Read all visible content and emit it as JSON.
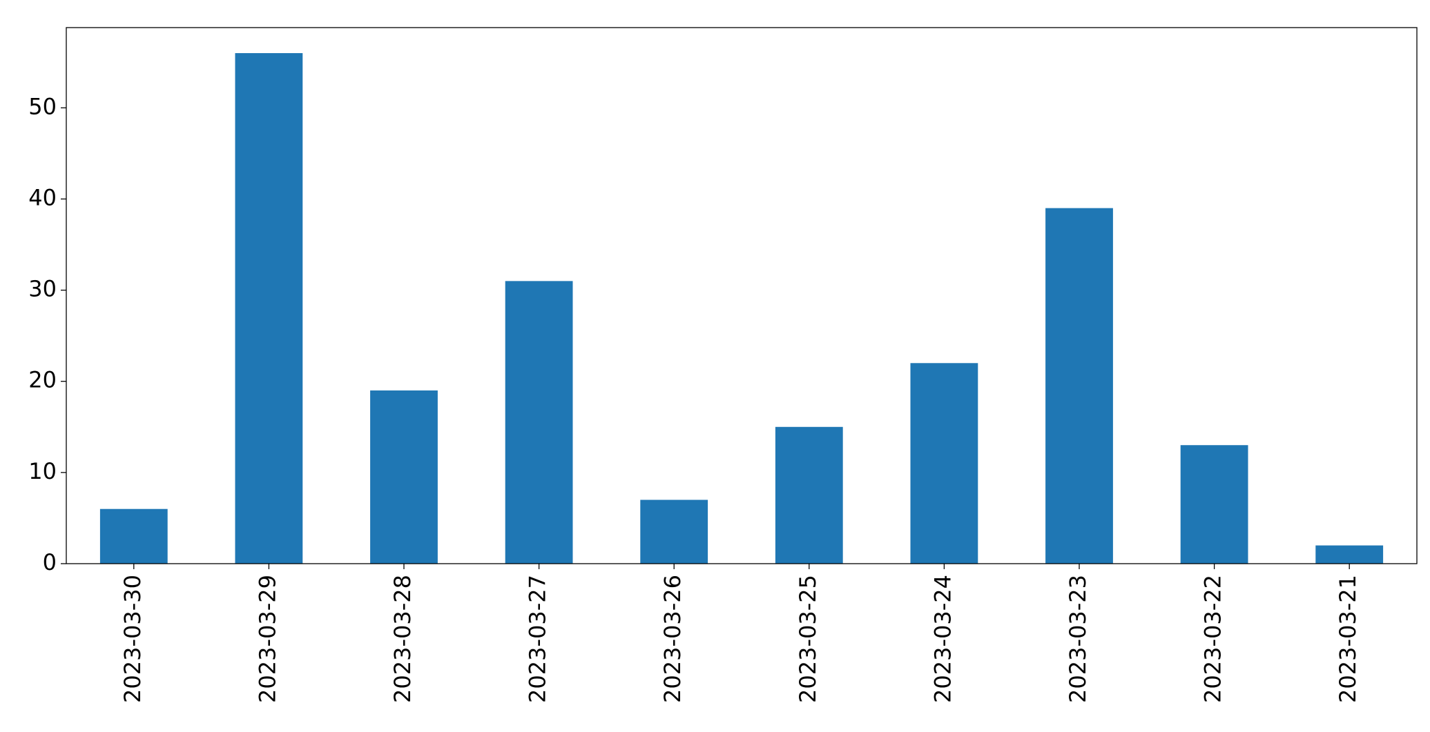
{
  "chart_data": {
    "type": "bar",
    "categories": [
      "2023-03-30",
      "2023-03-29",
      "2023-03-28",
      "2023-03-27",
      "2023-03-26",
      "2023-03-25",
      "2023-03-24",
      "2023-03-23",
      "2023-03-22",
      "2023-03-21"
    ],
    "values": [
      6,
      56,
      19,
      31,
      7,
      15,
      22,
      39,
      13,
      2
    ],
    "color": "#1f77b4",
    "ylim": [
      0,
      58.8
    ],
    "yticks": [
      0,
      10,
      20,
      30,
      40,
      50
    ],
    "grid": false
  }
}
